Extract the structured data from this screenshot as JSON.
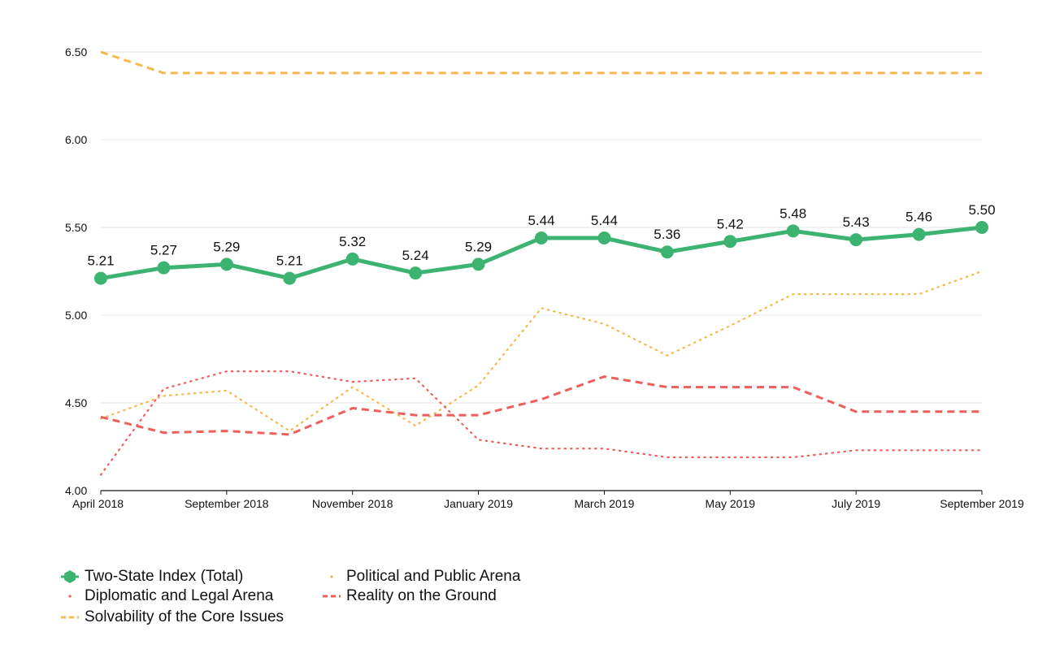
{
  "chart_data": {
    "type": "line",
    "title": "",
    "xlabel": "",
    "ylabel": "",
    "ylim": [
      4.0,
      6.5
    ],
    "y_ticks": [
      "4.00",
      "4.50",
      "5.00",
      "5.50",
      "6.00",
      "6.50"
    ],
    "y_tick_values": [
      4.0,
      4.5,
      5.0,
      5.5,
      6.0,
      6.5
    ],
    "x_tick_labels": [
      "April 2018",
      "September 2018",
      "November 2018",
      "January 2019",
      "March 2019",
      "May 2019",
      "July 2019",
      "September 2019"
    ],
    "x_tick_indices": [
      0,
      2,
      4,
      6,
      8,
      10,
      12,
      14
    ],
    "point_count": 15,
    "grid": true,
    "legend_position": "bottom-left",
    "series": [
      {
        "name": "Two-State Index (Total)",
        "color": "#3db371",
        "style": "solid-markers",
        "values": [
          5.21,
          5.27,
          5.29,
          5.21,
          5.32,
          5.24,
          5.29,
          5.44,
          5.44,
          5.36,
          5.42,
          5.48,
          5.43,
          5.46,
          5.5
        ],
        "labels": [
          "5.21",
          "5.27",
          "5.29",
          "5.21",
          "5.32",
          "5.24",
          "5.29",
          "5.44",
          "5.44",
          "5.36",
          "5.42",
          "5.48",
          "5.43",
          "5.46",
          "5.50"
        ]
      },
      {
        "name": "Diplomatic and Legal Arena",
        "color": "#ee5f5b",
        "style": "dotted",
        "values": [
          4.09,
          4.58,
          4.68,
          4.68,
          4.62,
          4.64,
          4.29,
          4.24,
          4.24,
          4.19,
          4.19,
          4.19,
          4.23,
          4.23,
          4.23
        ]
      },
      {
        "name": "Solvability of the Core Issues",
        "color": "#f5b84c",
        "style": "dashed",
        "values": [
          6.5,
          6.38,
          6.38,
          6.38,
          6.38,
          6.38,
          6.38,
          6.38,
          6.38,
          6.38,
          6.38,
          6.38,
          6.38,
          6.38,
          6.38
        ]
      },
      {
        "name": "Political and Public Arena",
        "color": "#f5b84c",
        "style": "dotted",
        "values": [
          4.41,
          4.54,
          4.57,
          4.34,
          4.59,
          4.37,
          4.6,
          5.04,
          4.95,
          4.77,
          4.94,
          5.12,
          5.12,
          5.12,
          5.25
        ]
      },
      {
        "name": "Reality on the Ground",
        "color": "#ee5f5b",
        "style": "dashed",
        "values": [
          4.42,
          4.33,
          4.34,
          4.32,
          4.47,
          4.43,
          4.43,
          4.52,
          4.65,
          4.59,
          4.59,
          4.59,
          4.45,
          4.45,
          4.45
        ]
      }
    ]
  },
  "legend": {
    "items": [
      {
        "label": "Two-State Index (Total)",
        "icon": "filled-circle-icon"
      },
      {
        "label": "Diplomatic and Legal Arena",
        "icon": "dot-icon"
      },
      {
        "label": "Solvability of the Core Issues",
        "icon": "dashed-line-icon"
      },
      {
        "label": "Political and Public Arena",
        "icon": "dot-icon"
      },
      {
        "label": "Reality on the Ground",
        "icon": "dashed-line-icon"
      }
    ]
  }
}
